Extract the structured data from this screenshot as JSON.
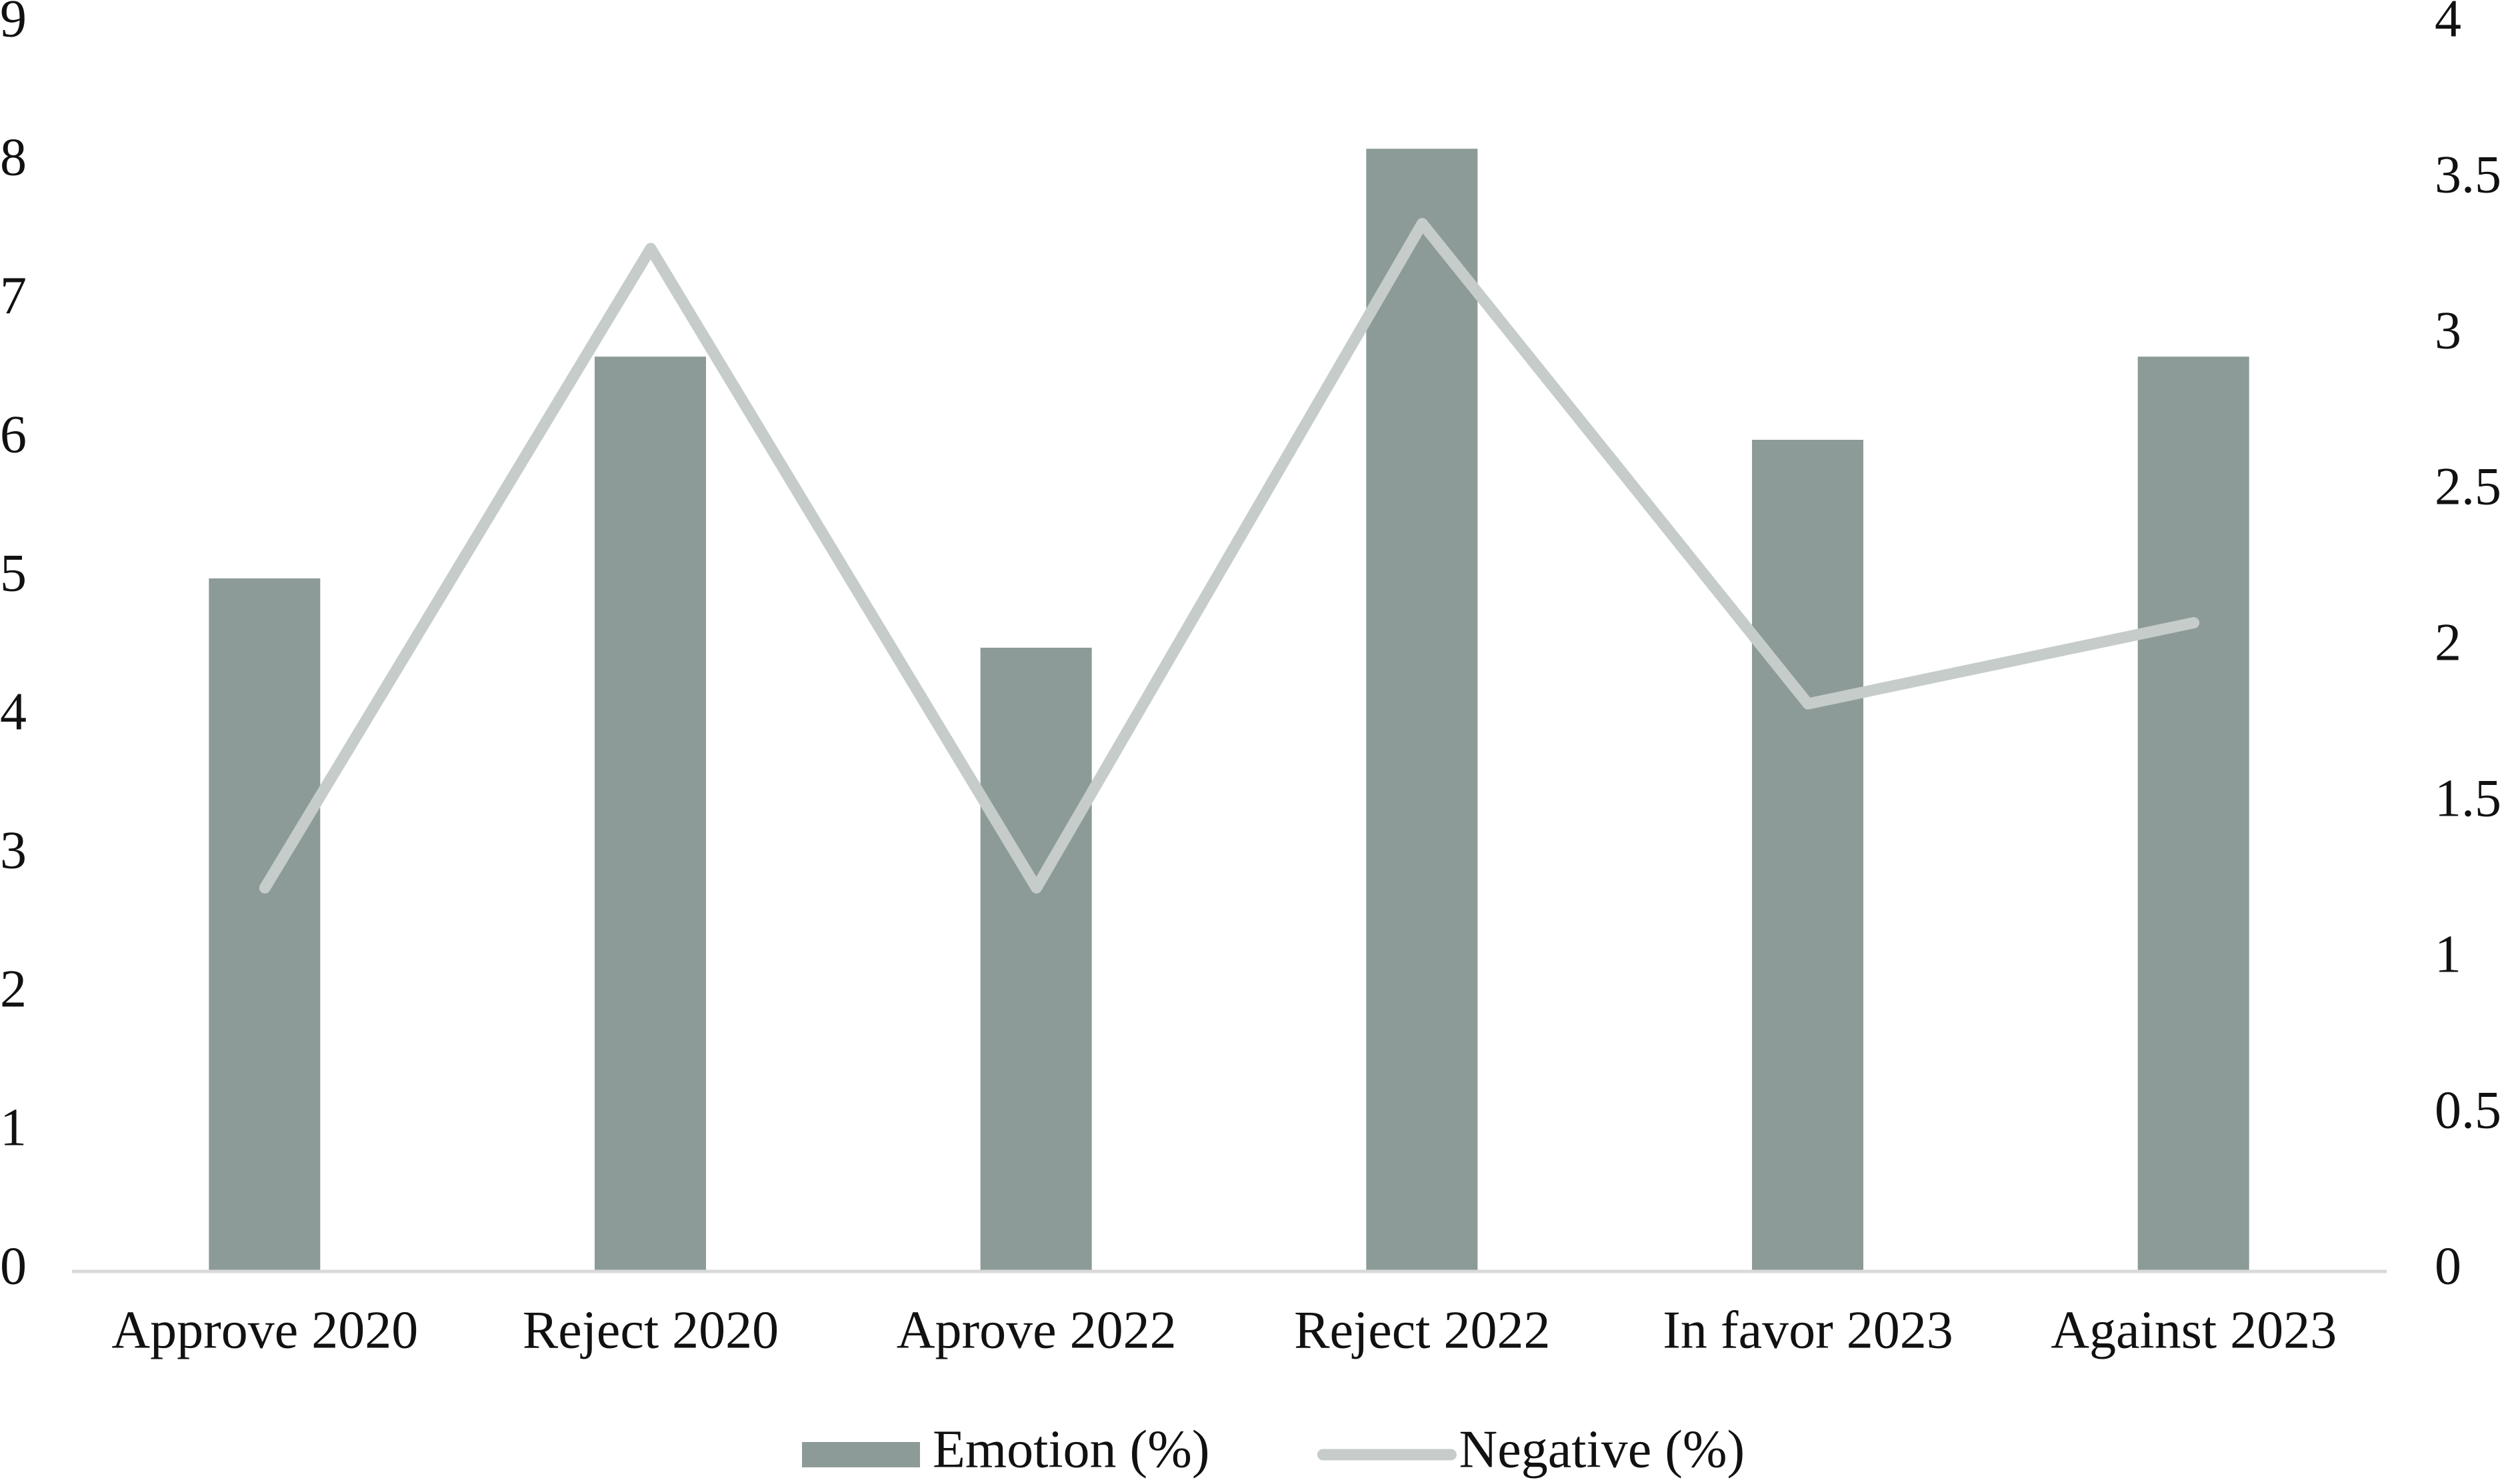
{
  "chart_data": {
    "type": "bar_line",
    "categories": [
      "Approve 2020",
      "Reject 2020",
      "Aprove 2022",
      "Reject 2022",
      "In favor 2023",
      "Against 2023"
    ],
    "series": [
      {
        "name": "Emotion (%)",
        "color": "#8c9a98",
        "type": "bar",
        "values": [
          5.0,
          6.6,
          4.5,
          8.1,
          6.0,
          6.6
        ]
      },
      {
        "name": "Negative (%)",
        "color": "#c5ccc9",
        "type": "line",
        "axis": "y2",
        "values": [
          1.23,
          3.28,
          1.23,
          3.36,
          1.82,
          2.08
        ]
      }
    ],
    "ylim": [
      0,
      9
    ],
    "yticks": [
      0,
      1,
      2,
      3,
      4,
      5,
      6,
      7,
      8,
      9
    ],
    "y2lim": [
      0,
      4
    ],
    "y2ticks": [
      0,
      0.5,
      1,
      1.5,
      2,
      2.5,
      3,
      3.5,
      4
    ],
    "legend": "bottom"
  }
}
